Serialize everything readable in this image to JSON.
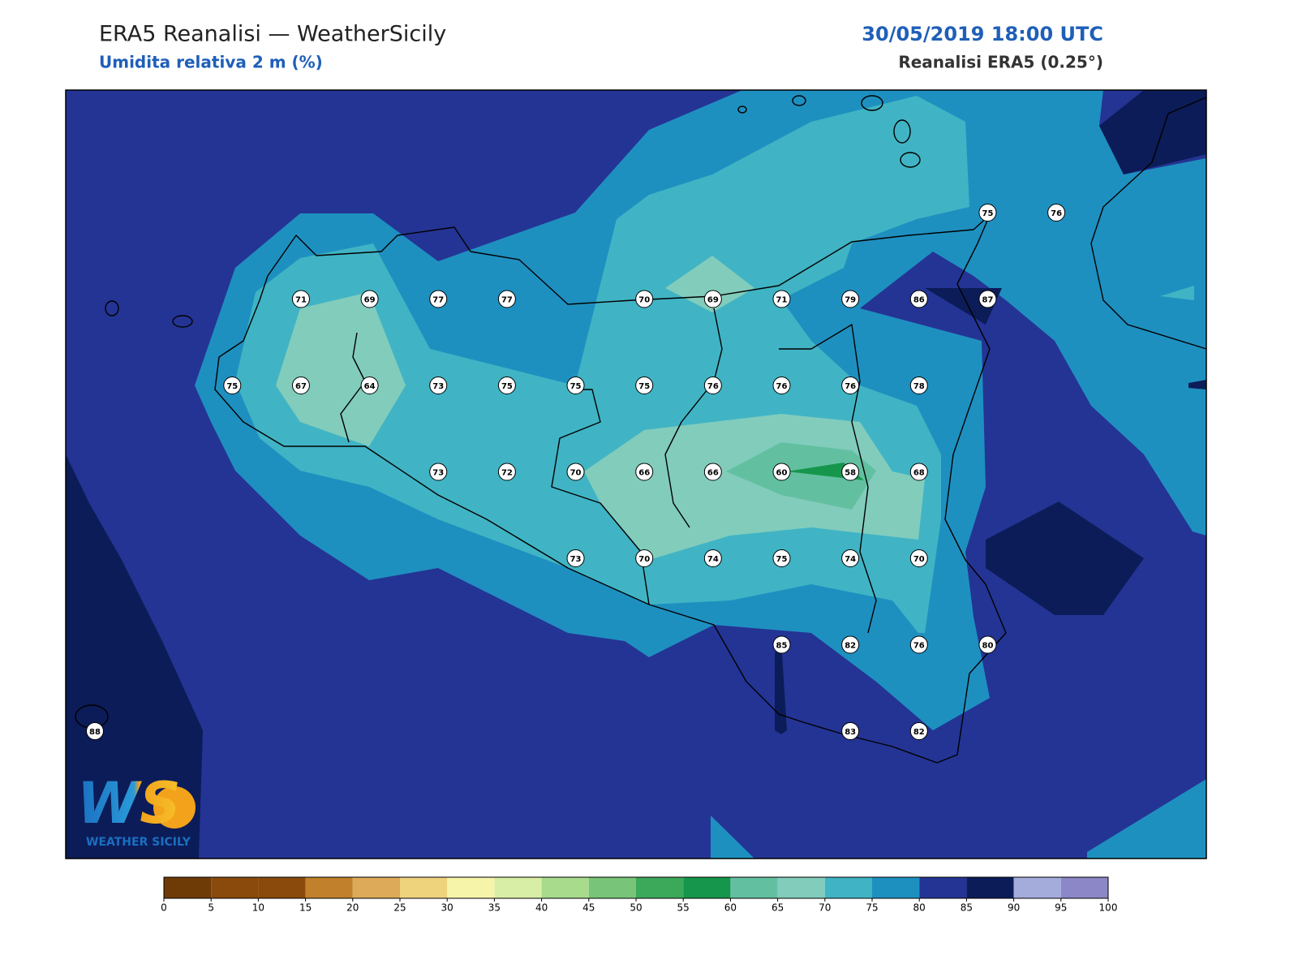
{
  "header": {
    "title": "ERA5 Reanalisi — WeatherSicily",
    "subtitle": "Umidita relativa 2 m (%)",
    "datetime": "30/05/2019 18:00 UTC",
    "source": "Reanalisi ERA5 (0.25°)"
  },
  "map": {
    "grid": [
      [
        null,
        null,
        null,
        null,
        null,
        null,
        null,
        null,
        null,
        null,
        null,
        null,
        null,
        75,
        76
      ],
      [
        null,
        null,
        null,
        71,
        69,
        77,
        77,
        null,
        70,
        69,
        71,
        79,
        86,
        87,
        null
      ],
      [
        null,
        null,
        75,
        67,
        64,
        73,
        75,
        75,
        75,
        76,
        76,
        76,
        78,
        null,
        null
      ],
      [
        null,
        null,
        null,
        null,
        null,
        73,
        72,
        70,
        66,
        66,
        60,
        58,
        68,
        null,
        null
      ],
      [
        null,
        null,
        null,
        null,
        null,
        null,
        null,
        73,
        70,
        74,
        75,
        74,
        70,
        null,
        null
      ],
      [
        null,
        null,
        null,
        null,
        null,
        null,
        null,
        null,
        null,
        null,
        85,
        82,
        76,
        80,
        null
      ],
      [
        88,
        null,
        null,
        null,
        null,
        null,
        null,
        null,
        null,
        null,
        null,
        83,
        82,
        null,
        null
      ]
    ]
  },
  "colorbar": {
    "ticks": [
      0,
      5,
      10,
      15,
      20,
      25,
      30,
      35,
      40,
      45,
      50,
      55,
      60,
      65,
      70,
      75,
      80,
      85,
      90,
      95,
      100
    ],
    "colors": [
      "#6e3a06",
      "#8a4a0c",
      "#8a4a0c",
      "#c0802c",
      "#dcaa58",
      "#eed27c",
      "#f6f4a8",
      "#d8eea6",
      "#a8dc8c",
      "#78c478",
      "#3ca85a",
      "#16964c",
      "#62c0a0",
      "#82ccbc",
      "#40b4c4",
      "#1e90c0",
      "#243494",
      "#0c1c58",
      "#a4acdc",
      "#8c88c8"
    ]
  },
  "logo": {
    "mark": "WS",
    "text": "WEATHER SICILY"
  }
}
